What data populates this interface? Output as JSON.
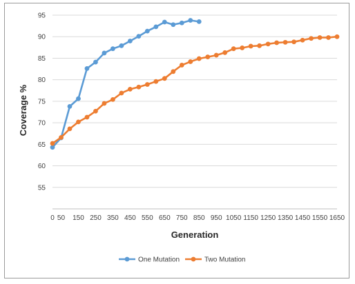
{
  "chart_data": {
    "type": "line",
    "title": "",
    "xlabel": "Generation",
    "ylabel": "Coverage %",
    "x_ticks": [
      0,
      50,
      150,
      250,
      350,
      450,
      550,
      650,
      750,
      850,
      950,
      1050,
      1150,
      1250,
      1350,
      1450,
      1550,
      1650
    ],
    "y_ticks": [
      55,
      60,
      65,
      70,
      75,
      80,
      85,
      90,
      95
    ],
    "xlim": [
      0,
      1650
    ],
    "ylim": [
      50,
      95
    ],
    "grid": "horizontal",
    "legend_position": "bottom",
    "series": [
      {
        "name": "One Mutation",
        "color": "#5b9bd5",
        "x": [
          0,
          50,
          100,
          150,
          200,
          250,
          300,
          350,
          400,
          450,
          500,
          550,
          600,
          650,
          700,
          750,
          800,
          850
        ],
        "y": [
          64.3,
          66.5,
          73.8,
          75.6,
          82.6,
          84.1,
          86.2,
          87.2,
          87.9,
          89.0,
          90.1,
          91.3,
          92.3,
          93.4,
          92.8,
          93.2,
          93.8,
          93.5
        ]
      },
      {
        "name": "Two Mutation",
        "color": "#ed7d31",
        "x": [
          0,
          50,
          100,
          150,
          200,
          250,
          300,
          350,
          400,
          450,
          500,
          550,
          600,
          650,
          700,
          750,
          800,
          850,
          900,
          950,
          1000,
          1050,
          1100,
          1150,
          1200,
          1250,
          1300,
          1350,
          1400,
          1450,
          1500,
          1550,
          1600,
          1650
        ],
        "y": [
          65.2,
          66.6,
          68.6,
          70.2,
          71.3,
          72.7,
          74.5,
          75.4,
          76.9,
          77.8,
          78.3,
          78.9,
          79.6,
          80.3,
          81.9,
          83.4,
          84.2,
          84.9,
          85.3,
          85.7,
          86.3,
          87.2,
          87.4,
          87.8,
          87.9,
          88.3,
          88.6,
          88.7,
          88.8,
          89.2,
          89.6,
          89.8,
          89.8,
          90.0
        ]
      }
    ]
  }
}
